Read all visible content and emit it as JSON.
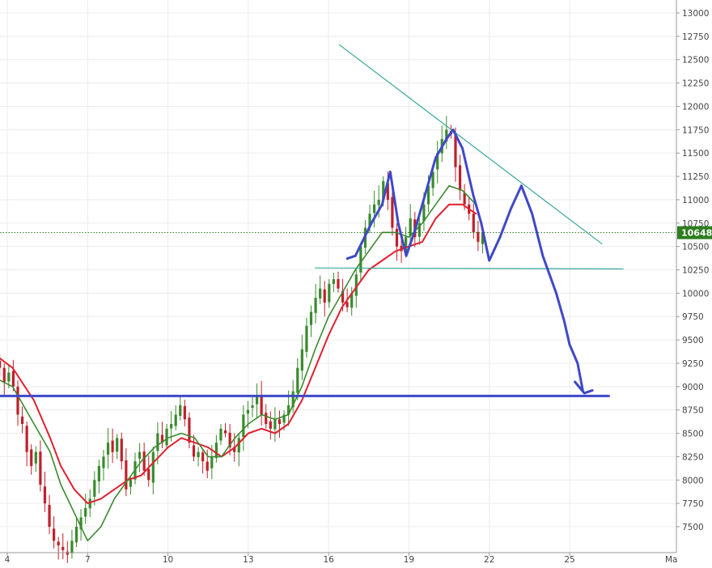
{
  "chart_data": {
    "type": "candlestick",
    "y_axis": {
      "side": "right",
      "ticks": [
        7500,
        7750,
        8000,
        8250,
        8500,
        8750,
        9000,
        9250,
        9500,
        9750,
        10000,
        10250,
        10500,
        10750,
        11000,
        11250,
        11500,
        11750,
        12000,
        12250,
        12500,
        12750,
        13000
      ]
    },
    "x_axis": {
      "ticks": [
        {
          "day": 4,
          "label": "4"
        },
        {
          "day": 7,
          "label": "7"
        },
        {
          "day": 10,
          "label": "10"
        },
        {
          "day": 13,
          "label": "13"
        },
        {
          "day": 16,
          "label": "16"
        },
        {
          "day": 19,
          "label": "19"
        },
        {
          "day": 22,
          "label": "22"
        },
        {
          "day": 25,
          "label": "25"
        }
      ],
      "edge_label": "Ma"
    },
    "last_price": {
      "value": 10648,
      "label": "10648"
    },
    "colors": {
      "up": "#3a8a2e",
      "down": "#c0202a",
      "ma_fast": "#3b8a2e",
      "ma_slow": "#e02030",
      "drawing": "#3f48c8",
      "trendline": "#36a899",
      "price_badge": "#2e7d1f"
    },
    "candles_close": [
      9300,
      9200,
      9050,
      9150,
      9000,
      8700,
      8600,
      8300,
      8150,
      8300,
      7950,
      7750,
      7500,
      7350,
      7300,
      7250,
      7200,
      7350,
      7500,
      7600,
      7700,
      7800,
      8000,
      8150,
      8250,
      8400,
      8300,
      8450,
      8200,
      7900,
      8000,
      8200,
      8300,
      8100,
      8000,
      8300,
      8500,
      8400,
      8550,
      8600,
      8700,
      8800,
      8650,
      8400,
      8250,
      8300,
      8200,
      8100,
      8250,
      8400,
      8550,
      8500,
      8350,
      8300,
      8450,
      8700,
      8750,
      8800,
      8900,
      8700,
      8600,
      8550,
      8650,
      8600,
      8700,
      8800,
      8950,
      9200,
      9400,
      9650,
      9800,
      9950,
      10050,
      9900,
      10100,
      10150,
      10050,
      9900,
      9850,
      10000,
      10200,
      10500,
      10700,
      10850,
      10950,
      11000,
      11200,
      11000,
      10700,
      10500,
      10450,
      10600,
      10800,
      10600,
      10750,
      10950,
      11150,
      11300,
      11500,
      11650,
      11750,
      11700,
      11350,
      11100,
      10950,
      10850,
      10650,
      10550,
      10650
    ],
    "ma_fast": [
      [
        3.5,
        9100
      ],
      [
        4.2,
        9000
      ],
      [
        5.0,
        8600
      ],
      [
        5.6,
        8300
      ],
      [
        6.0,
        7950
      ],
      [
        6.5,
        7650
      ],
      [
        7.0,
        7350
      ],
      [
        7.5,
        7500
      ],
      [
        8.0,
        7800
      ],
      [
        8.5,
        8000
      ],
      [
        9.0,
        8200
      ],
      [
        9.5,
        8350
      ],
      [
        10.0,
        8450
      ],
      [
        10.5,
        8500
      ],
      [
        11.0,
        8450
      ],
      [
        11.5,
        8250
      ],
      [
        12.0,
        8250
      ],
      [
        12.5,
        8450
      ],
      [
        13.0,
        8600
      ],
      [
        13.5,
        8700
      ],
      [
        14.0,
        8650
      ],
      [
        14.5,
        8700
      ],
      [
        15.0,
        9000
      ],
      [
        15.5,
        9400
      ],
      [
        16.0,
        9750
      ],
      [
        16.5,
        10000
      ],
      [
        17.0,
        10250
      ],
      [
        17.5,
        10450
      ],
      [
        18.0,
        10650
      ],
      [
        18.5,
        10650
      ],
      [
        19.0,
        10600
      ],
      [
        19.5,
        10750
      ],
      [
        20.0,
        10950
      ],
      [
        20.5,
        11150
      ],
      [
        21.0,
        11100
      ],
      [
        21.5,
        10950
      ]
    ],
    "ma_slow": [
      [
        3.5,
        9350
      ],
      [
        4.2,
        9200
      ],
      [
        5.0,
        8850
      ],
      [
        5.6,
        8450
      ],
      [
        6.0,
        8150
      ],
      [
        6.5,
        7900
      ],
      [
        7.0,
        7750
      ],
      [
        7.5,
        7800
      ],
      [
        8.0,
        7900
      ],
      [
        8.5,
        8000
      ],
      [
        9.0,
        8050
      ],
      [
        9.5,
        8200
      ],
      [
        10.0,
        8350
      ],
      [
        10.5,
        8450
      ],
      [
        11.0,
        8400
      ],
      [
        11.5,
        8350
      ],
      [
        12.0,
        8250
      ],
      [
        12.5,
        8350
      ],
      [
        13.0,
        8500
      ],
      [
        13.5,
        8550
      ],
      [
        14.0,
        8500
      ],
      [
        14.5,
        8600
      ],
      [
        15.0,
        8850
      ],
      [
        15.5,
        9200
      ],
      [
        16.0,
        9550
      ],
      [
        16.5,
        9850
      ],
      [
        17.0,
        10050
      ],
      [
        17.5,
        10250
      ],
      [
        18.0,
        10350
      ],
      [
        18.5,
        10450
      ],
      [
        19.0,
        10500
      ],
      [
        19.5,
        10550
      ],
      [
        20.0,
        10800
      ],
      [
        20.5,
        10950
      ],
      [
        21.0,
        10950
      ],
      [
        21.5,
        10850
      ]
    ],
    "annotations": {
      "support_line": {
        "price": 8900,
        "from_day": 3.5,
        "to_day": 26.5
      },
      "neckline": [
        [
          15.5,
          10270
        ],
        [
          27.0,
          10260
        ]
      ],
      "trendline": [
        [
          16.4,
          12660
        ],
        [
          26.2,
          10530
        ]
      ],
      "forecast_path": [
        [
          16.7,
          10370
        ],
        [
          17.0,
          10400
        ],
        [
          17.6,
          10750
        ],
        [
          18.0,
          10950
        ],
        [
          18.3,
          11300
        ],
        [
          18.6,
          10750
        ],
        [
          18.9,
          10400
        ],
        [
          19.2,
          10650
        ],
        [
          19.6,
          11050
        ],
        [
          20.0,
          11450
        ],
        [
          20.4,
          11650
        ],
        [
          20.65,
          11750
        ],
        [
          21.0,
          11550
        ],
        [
          21.4,
          11050
        ],
        [
          21.7,
          10750
        ],
        [
          22.0,
          10350
        ],
        [
          22.4,
          10600
        ],
        [
          22.8,
          10900
        ],
        [
          23.2,
          11150
        ],
        [
          23.6,
          10850
        ],
        [
          24.0,
          10400
        ],
        [
          24.5,
          10000
        ],
        [
          24.8,
          9700
        ],
        [
          25.0,
          9450
        ],
        [
          25.3,
          9250
        ],
        [
          25.5,
          8950
        ],
        [
          25.2,
          9050
        ],
        [
          25.55,
          8930
        ],
        [
          25.85,
          8960
        ]
      ]
    }
  }
}
